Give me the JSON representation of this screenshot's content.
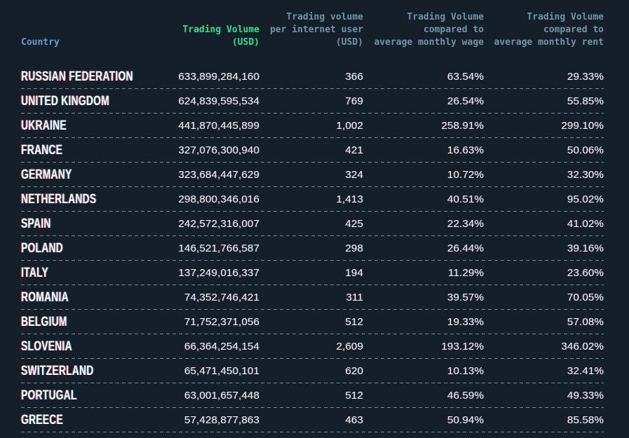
{
  "theme": {
    "background": "#151f29",
    "accent_green": "#2ee088",
    "country_header_blue": "#5c9ddb",
    "column_header_slate": "#7195a8",
    "cell_text": "#eef2f4",
    "divider": "#98a2a9"
  },
  "chart_data": {
    "type": "table",
    "columns": [
      "Country",
      "Trading Volume\n(USD)",
      "Trading volume\nper internet user\n(USD)",
      "Trading Volume\ncompared to\naverage monthly wage",
      "Trading Volume\ncompared to\naverage monthly rent"
    ],
    "rows": [
      {
        "country": "RUSSIAN FEDERATION",
        "trading_volume_usd": "633,899,284,160",
        "volume_per_internet_user_usd": "366",
        "volume_vs_avg_monthly_wage": "63.54%",
        "volume_vs_avg_monthly_rent": "29.33%"
      },
      {
        "country": "UNITED KINGDOM",
        "trading_volume_usd": "624,839,595,534",
        "volume_per_internet_user_usd": "769",
        "volume_vs_avg_monthly_wage": "26.54%",
        "volume_vs_avg_monthly_rent": "55.85%"
      },
      {
        "country": "UKRAINE",
        "trading_volume_usd": "441,870,445,899",
        "volume_per_internet_user_usd": "1,002",
        "volume_vs_avg_monthly_wage": "258.91%",
        "volume_vs_avg_monthly_rent": "299.10%"
      },
      {
        "country": "FRANCE",
        "trading_volume_usd": "327,076,300,940",
        "volume_per_internet_user_usd": "421",
        "volume_vs_avg_monthly_wage": "16.63%",
        "volume_vs_avg_monthly_rent": "50.06%"
      },
      {
        "country": "GERMANY",
        "trading_volume_usd": "323,684,447,629",
        "volume_per_internet_user_usd": "324",
        "volume_vs_avg_monthly_wage": "10.72%",
        "volume_vs_avg_monthly_rent": "32.30%"
      },
      {
        "country": "NETHERLANDS",
        "trading_volume_usd": "298,800,346,016",
        "volume_per_internet_user_usd": "1,413",
        "volume_vs_avg_monthly_wage": "40.51%",
        "volume_vs_avg_monthly_rent": "95.02%"
      },
      {
        "country": "SPAIN",
        "trading_volume_usd": "242,572,316,007",
        "volume_per_internet_user_usd": "425",
        "volume_vs_avg_monthly_wage": "22.34%",
        "volume_vs_avg_monthly_rent": "41.02%"
      },
      {
        "country": "POLAND",
        "trading_volume_usd": "146,521,766,587",
        "volume_per_internet_user_usd": "298",
        "volume_vs_avg_monthly_wage": "26.44%",
        "volume_vs_avg_monthly_rent": "39.16%"
      },
      {
        "country": "ITALY",
        "trading_volume_usd": "137,249,016,337",
        "volume_per_internet_user_usd": "194",
        "volume_vs_avg_monthly_wage": "11.29%",
        "volume_vs_avg_monthly_rent": "23.60%"
      },
      {
        "country": "ROMANIA",
        "trading_volume_usd": "74,352,746,421",
        "volume_per_internet_user_usd": "311",
        "volume_vs_avg_monthly_wage": "39.57%",
        "volume_vs_avg_monthly_rent": "70.05%"
      },
      {
        "country": "BELGIUM",
        "trading_volume_usd": "71,752,371,056",
        "volume_per_internet_user_usd": "512",
        "volume_vs_avg_monthly_wage": "19.33%",
        "volume_vs_avg_monthly_rent": "57.08%"
      },
      {
        "country": "SLOVENIA",
        "trading_volume_usd": "66,364,254,154",
        "volume_per_internet_user_usd": "2,609",
        "volume_vs_avg_monthly_wage": "193.12%",
        "volume_vs_avg_monthly_rent": "346.02%"
      },
      {
        "country": "SWITZERLAND",
        "trading_volume_usd": "65,471,450,101",
        "volume_per_internet_user_usd": "620",
        "volume_vs_avg_monthly_wage": "10.13%",
        "volume_vs_avg_monthly_rent": "32.41%"
      },
      {
        "country": "PORTUGAL",
        "trading_volume_usd": "63,001,657,448",
        "volume_per_internet_user_usd": "512",
        "volume_vs_avg_monthly_wage": "46.59%",
        "volume_vs_avg_monthly_rent": "49.33%"
      },
      {
        "country": "GREECE",
        "trading_volume_usd": "57,428,877,863",
        "volume_per_internet_user_usd": "463",
        "volume_vs_avg_monthly_wage": "50.94%",
        "volume_vs_avg_monthly_rent": "85.58%"
      }
    ]
  }
}
